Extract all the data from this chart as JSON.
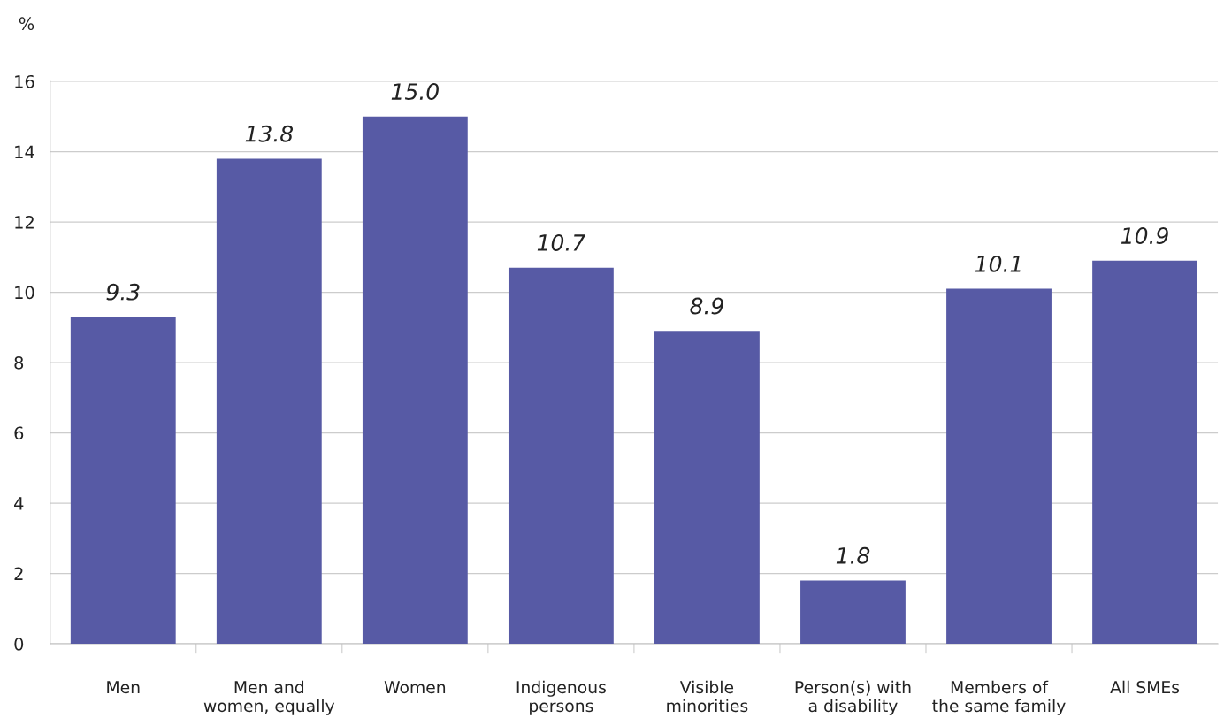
{
  "chart_data": {
    "type": "bar",
    "ylabel": "%",
    "categories": [
      "Men",
      "Men and\nwomen, equally",
      "Women",
      "Indigenous\npersons",
      "Visible\nminorities",
      "Person(s) with\na disability",
      "Members of\nthe same family",
      "All SMEs"
    ],
    "values": [
      9.3,
      13.8,
      15.0,
      10.7,
      8.9,
      1.8,
      10.1,
      10.9
    ],
    "value_labels": [
      "9.3",
      "13.8",
      "15.0",
      "10.7",
      "8.9",
      "1.8",
      "10.1",
      "10.9"
    ],
    "color": "#575aa5",
    "ylim": [
      0,
      16
    ],
    "yticks": [
      0,
      2,
      4,
      6,
      8,
      10,
      12,
      14,
      16
    ],
    "grid": "y"
  }
}
